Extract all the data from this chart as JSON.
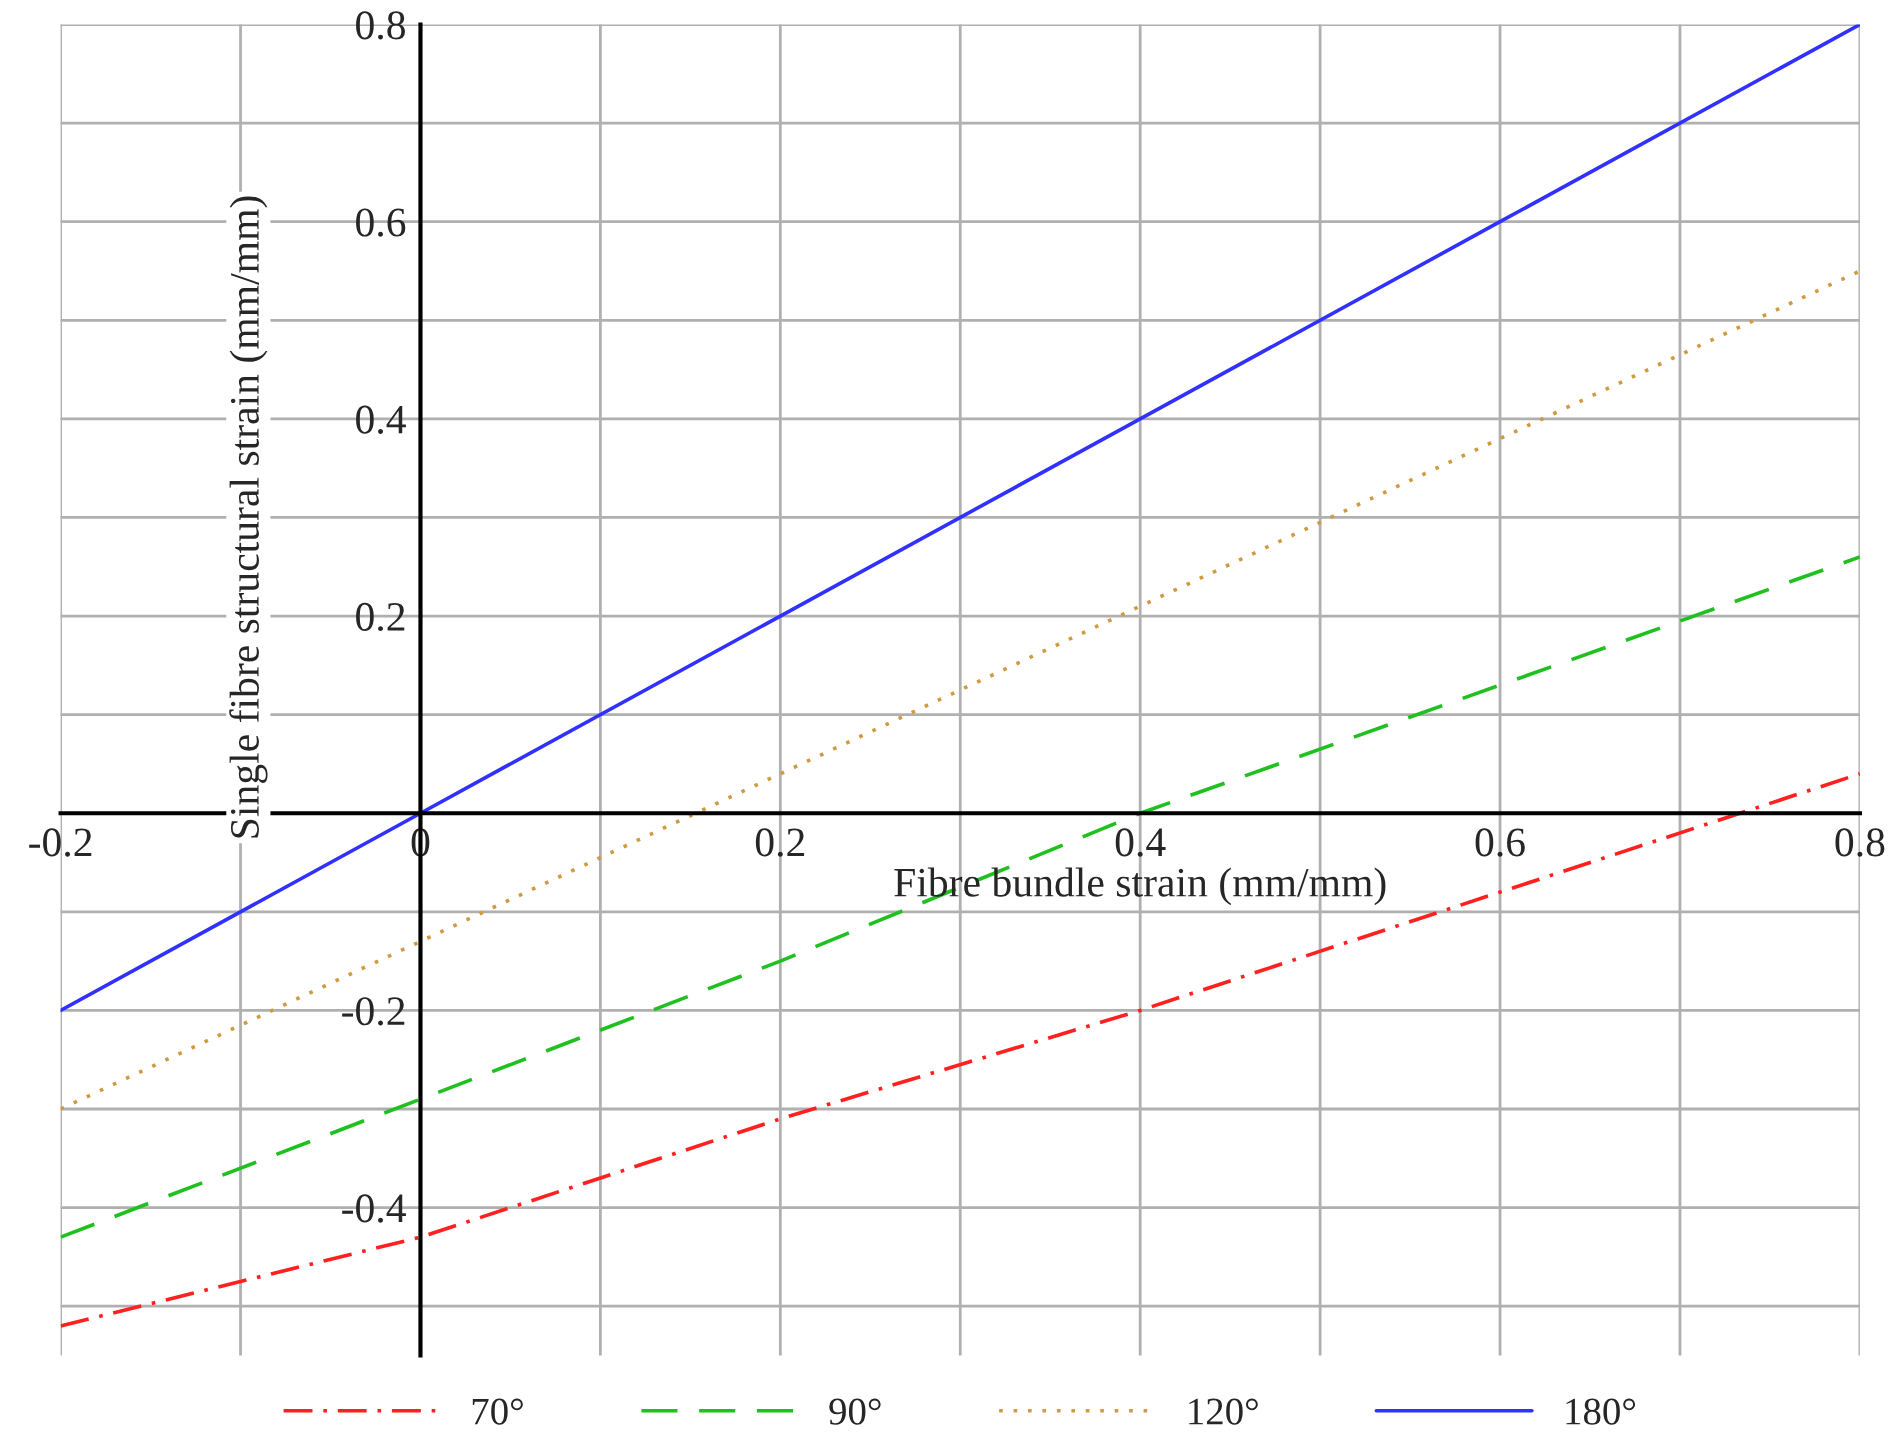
{
  "chart_data": {
    "type": "line",
    "xlabel": "Fibre bundle strain (mm/mm)",
    "ylabel": "Single fibre structural strain (mm/mm)",
    "x": [
      -0.2,
      0,
      0.2,
      0.4,
      0.6,
      0.8
    ],
    "series": [
      {
        "name": "70°",
        "color": "#ff2020",
        "line_style": "dashdot",
        "values": [
          -0.52,
          -0.43,
          -0.31,
          -0.2,
          -0.08,
          0.04
        ]
      },
      {
        "name": "90°",
        "color": "#20c020",
        "line_style": "dashed",
        "values": [
          -0.43,
          -0.29,
          -0.15,
          0.0,
          0.13,
          0.26
        ]
      },
      {
        "name": "120°",
        "color": "#d09a40",
        "line_style": "dotted",
        "values": [
          -0.3,
          -0.13,
          0.04,
          0.21,
          0.38,
          0.55
        ]
      },
      {
        "name": "180°",
        "color": "#3030ff",
        "line_style": "solid",
        "values": [
          -0.2,
          0.0,
          0.2,
          0.4,
          0.6,
          0.8
        ]
      }
    ],
    "xlim": [
      -0.2,
      0.8
    ],
    "ylim": [
      -0.55,
      0.8
    ],
    "xticks": [
      -0.2,
      {
        "value": -0.1,
        "label": null
      },
      0,
      {
        "value": 0.1,
        "label": null
      },
      0.2,
      {
        "value": 0.3,
        "label": null
      },
      0.4,
      {
        "value": 0.5,
        "label": null
      },
      0.6,
      {
        "value": 0.7,
        "label": null
      },
      0.8
    ],
    "yticks": [
      {
        "value": -0.5,
        "label": null
      },
      -0.4,
      {
        "value": -0.3,
        "label": null
      },
      -0.2,
      {
        "value": -0.1,
        "label": null
      },
      {
        "value": 0,
        "label": null
      },
      {
        "value": 0.1,
        "label": null
      },
      0.2,
      {
        "value": 0.3,
        "label": null
      },
      0.4,
      {
        "value": 0.5,
        "label": null
      },
      0.6,
      {
        "value": 0.7,
        "label": null
      },
      0.8
    ],
    "grid": true,
    "legend": "bottom",
    "marker": "none"
  }
}
